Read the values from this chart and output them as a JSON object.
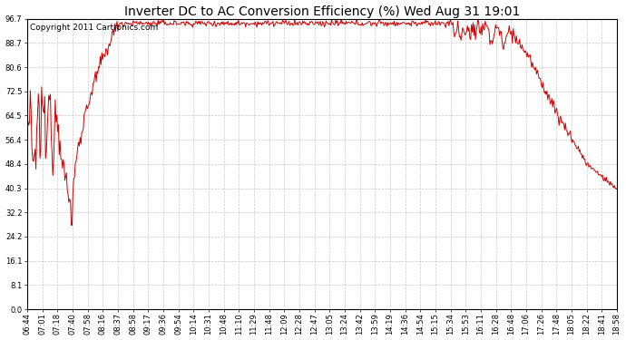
{
  "title": "Inverter DC to AC Conversion Efficiency (%) Wed Aug 31 19:01",
  "copyright": "Copyright 2011 Cartronics.com",
  "line_color": "#cc0000",
  "background_color": "#ffffff",
  "plot_bg_color": "#ffffff",
  "grid_color": "#bbbbbb",
  "yticks": [
    0.0,
    8.1,
    16.1,
    24.2,
    32.2,
    40.3,
    48.4,
    56.4,
    64.5,
    72.5,
    80.6,
    88.7,
    96.7
  ],
  "ylim": [
    0.0,
    96.7
  ],
  "x_labels": [
    "06:44",
    "07:01",
    "07:18",
    "07:40",
    "07:58",
    "08:16",
    "08:37",
    "08:58",
    "09:17",
    "09:36",
    "09:54",
    "10:14",
    "10:31",
    "10:48",
    "11:10",
    "11:29",
    "11:48",
    "12:09",
    "12:28",
    "12:47",
    "13:05",
    "13:24",
    "13:42",
    "13:59",
    "14:19",
    "14:36",
    "14:54",
    "15:15",
    "15:34",
    "15:53",
    "16:11",
    "16:28",
    "16:48",
    "17:06",
    "17:26",
    "17:48",
    "18:05",
    "18:22",
    "18:41",
    "18:58"
  ],
  "title_fontsize": 10,
  "copyright_fontsize": 6.5,
  "tick_fontsize": 6.0,
  "figsize": [
    6.9,
    3.75
  ],
  "dpi": 100
}
